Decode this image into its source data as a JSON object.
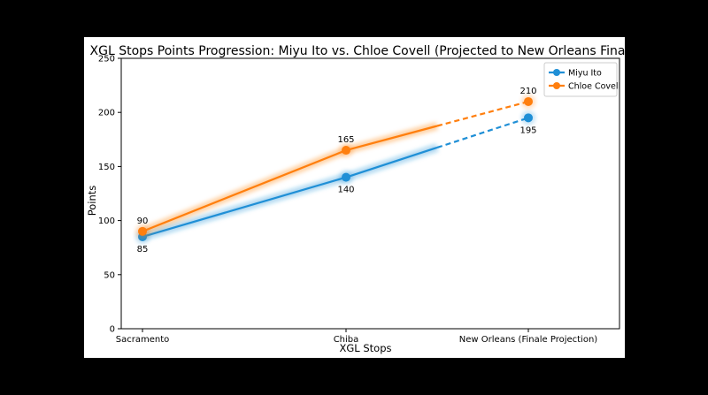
{
  "chart_data": {
    "type": "line",
    "title": "XGL Stops Points Progression: Miyu Ito vs. Chloe Covell (Projected to New Orleans Finale)",
    "xlabel": "XGL Stops",
    "ylabel": "Points",
    "categories": [
      "Sacramento",
      "Chiba",
      "New Orleans (Finale Projection)"
    ],
    "ylim": [
      0,
      250
    ],
    "yticks": [
      0,
      50,
      100,
      150,
      200,
      250
    ],
    "grid": false,
    "legend_position": "top-right",
    "series": [
      {
        "name": "Miyu Ito",
        "values": [
          85,
          140,
          195
        ],
        "color": "#1f8fd6",
        "projected_last": true
      },
      {
        "name": "Chloe Covell",
        "values": [
          90,
          165,
          210
        ],
        "color": "#ff7f0e",
        "projected_last": true
      }
    ],
    "data_labels": {
      "Miyu Ito": [
        "85",
        "140",
        "195"
      ],
      "Chloe Covell": [
        "90",
        "165",
        "210"
      ]
    }
  }
}
